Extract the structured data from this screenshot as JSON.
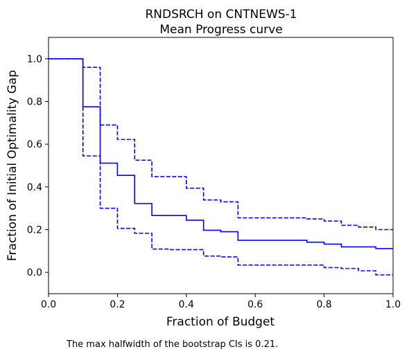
{
  "chart_data": {
    "type": "line",
    "title": "RNDSRCH on CNTNEWS-1",
    "subtitle": "Mean Progress curve",
    "xlabel": "Fraction of Budget",
    "ylabel": "Fraction of Initial Optimality Gap",
    "xlim": [
      0,
      1
    ],
    "ylim": [
      -0.1,
      1.1
    ],
    "xticks": [
      0,
      0.2,
      0.4,
      0.6,
      0.8,
      1
    ],
    "xtick_labels": [
      "0.0",
      "0.2",
      "0.4",
      "0.6",
      "0.8",
      "1.0"
    ],
    "yticks": [
      0,
      0.2,
      0.4,
      0.6,
      0.8,
      1
    ],
    "ytick_labels": [
      "0.0",
      "0.2",
      "0.4",
      "0.6",
      "0.8",
      "1.0"
    ],
    "grid": false,
    "color": "#0000ff",
    "series": [
      {
        "style": "solid",
        "x": [
          0,
          0.1,
          0.15,
          0.2,
          0.25,
          0.3,
          0.4,
          0.45,
          0.5,
          0.55,
          0.75,
          0.8,
          0.85,
          0.95,
          1.0
        ],
        "y": [
          1.0,
          0.775,
          0.511,
          0.454,
          0.322,
          0.266,
          0.244,
          0.197,
          0.19,
          0.15,
          0.141,
          0.132,
          0.119,
          0.111,
          0.111
        ]
      },
      {
        "style": "dashed",
        "x": [
          0,
          0.1,
          0.15,
          0.2,
          0.25,
          0.3,
          0.4,
          0.45,
          0.5,
          0.55,
          0.75,
          0.8,
          0.85,
          0.9,
          0.95,
          1.0
        ],
        "y": [
          1.0,
          0.96,
          0.69,
          0.622,
          0.525,
          0.448,
          0.394,
          0.339,
          0.33,
          0.255,
          0.25,
          0.24,
          0.22,
          0.212,
          0.2,
          0.2
        ]
      },
      {
        "style": "dashed",
        "x": [
          0,
          0.1,
          0.15,
          0.2,
          0.25,
          0.3,
          0.35,
          0.45,
          0.5,
          0.55,
          0.75,
          0.8,
          0.85,
          0.9,
          0.95,
          1.0
        ],
        "y": [
          1.0,
          0.545,
          0.3,
          0.206,
          0.183,
          0.109,
          0.106,
          0.076,
          0.072,
          0.034,
          0.034,
          0.022,
          0.018,
          0.007,
          -0.012,
          -0.012
        ]
      }
    ]
  },
  "footnote": "The max halfwidth of the bootstrap CIs is 0.21."
}
